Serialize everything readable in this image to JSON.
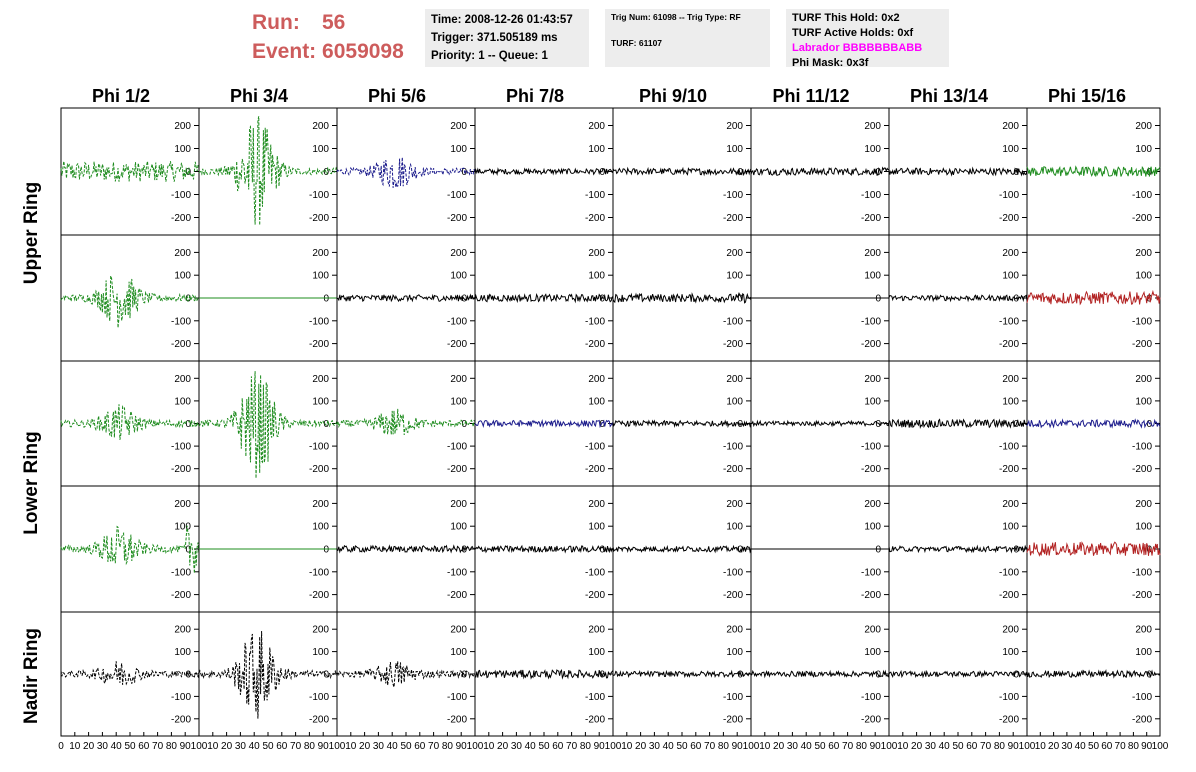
{
  "run": {
    "run_label": "Run:",
    "run_value": "56",
    "event_label": "Event:",
    "event_value": "6059098"
  },
  "time_box": {
    "time": "Time: 2008-12-26 01:43:57",
    "trigger": "Trigger: 371.505189 ms",
    "priority": "Priority: 1 -- Queue: 1"
  },
  "trig_box": {
    "trig": "Trig Num: 61098 -- Trig Type: RF",
    "turf": "TURF: 61107"
  },
  "turf_box": {
    "hold": "TURF This Hold: 0x2",
    "active": "TURF Active Holds: 0xf",
    "labrador": "Labrador BBBBBBBABB",
    "phimask": "Phi Mask: 0x3f"
  },
  "columns": [
    "Phi 1/2",
    "Phi 3/4",
    "Phi 5/6",
    "Phi 7/8",
    "Phi 9/10",
    "Phi 11/12",
    "Phi 13/14",
    "Phi 15/16"
  ],
  "rows": [
    {
      "label": "Upper Ring"
    },
    {
      "label": "Lower Ring"
    },
    {
      "label": "Nadir Ring"
    }
  ],
  "y_ticks": [
    "200",
    "100",
    "0",
    "-100",
    "-200"
  ],
  "x_ticks": [
    "0",
    "10",
    "20",
    "30",
    "40",
    "50",
    "60",
    "70",
    "80",
    "90",
    "100"
  ],
  "colors": {
    "green": "#1e8c1e",
    "blue": "#1c1c8c",
    "red": "#b22222",
    "black": "#000000",
    "run_text": "#cd5c5c",
    "labrador": "#ff00ff"
  },
  "chart_data": {
    "type": "line",
    "xlim": [
      0,
      100
    ],
    "ylim": [
      -250,
      250
    ],
    "panels": [
      [
        {
          "color": "green",
          "dashed": true,
          "amp": 45,
          "burst": 0
        },
        {
          "color": "green",
          "dashed": true,
          "amp": 110,
          "burst": 1,
          "peak": 240
        },
        {
          "color": "blue",
          "dashed": true,
          "amp": 70,
          "burst": 1
        },
        {
          "color": "black",
          "amp": 12
        },
        {
          "color": "black",
          "amp": 14
        },
        {
          "color": "black",
          "amp": 16
        },
        {
          "color": "black",
          "amp": 15
        },
        {
          "color": "green",
          "amp": 22
        }
      ],
      [
        {
          "color": "green",
          "dashed": true,
          "amp": 120,
          "burst": 1
        },
        {
          "color": "green",
          "flat": true
        },
        {
          "color": "black",
          "amp": 14
        },
        {
          "color": "black",
          "amp": 16
        },
        {
          "color": "black",
          "amp": 18,
          "tail": 1
        },
        {
          "color": "black",
          "flat": true
        },
        {
          "color": "black",
          "amp": 12
        },
        {
          "color": "red",
          "amp": 28
        }
      ],
      [
        {
          "color": "green",
          "dashed": true,
          "amp": 70,
          "burst": 1
        },
        {
          "color": "green",
          "dashed": true,
          "amp": 150,
          "burst": 1,
          "peak": 230
        },
        {
          "color": "green",
          "dashed": true,
          "amp": 55,
          "burst": 1
        },
        {
          "color": "blue",
          "amp": 14
        },
        {
          "color": "black",
          "amp": 12
        },
        {
          "color": "black",
          "amp": 10
        },
        {
          "color": "black",
          "amp": 18
        },
        {
          "color": "blue",
          "amp": 16
        }
      ],
      [
        {
          "color": "green",
          "dashed": true,
          "amp": 90,
          "burst": 1,
          "tail": 1
        },
        {
          "color": "green",
          "flat": true
        },
        {
          "color": "black",
          "amp": 14
        },
        {
          "color": "black",
          "amp": 14
        },
        {
          "color": "black",
          "amp": 12
        },
        {
          "color": "black",
          "flat": true
        },
        {
          "color": "black",
          "amp": 12
        },
        {
          "color": "red",
          "amp": 30
        }
      ],
      [
        {
          "color": "black",
          "dashed": true,
          "amp": 50,
          "burst": 1
        },
        {
          "color": "black",
          "dashed": true,
          "amp": 130,
          "burst": 1,
          "peak": 200
        },
        {
          "color": "black",
          "dashed": true,
          "amp": 50,
          "burst": 1
        },
        {
          "color": "black",
          "amp": 18
        },
        {
          "color": "black",
          "amp": 12
        },
        {
          "color": "black",
          "amp": 12
        },
        {
          "color": "black",
          "amp": 12
        },
        {
          "color": "black",
          "amp": 14
        }
      ]
    ]
  }
}
